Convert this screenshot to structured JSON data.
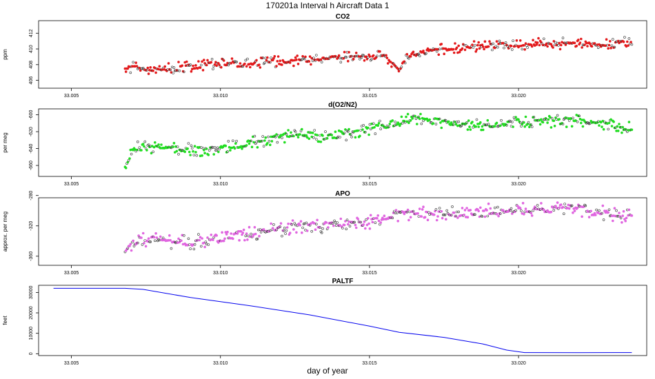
{
  "figure": {
    "title": "170201a   Interval h Aircraft Data 1",
    "xlabel": "day of year",
    "x_ticks": [
      "33.005",
      "33.010",
      "33.015",
      "33.020"
    ]
  },
  "chart_data": [
    {
      "type": "scatter",
      "title": "CO2",
      "xlabel": "day of year",
      "ylabel": "ppm",
      "xlim": [
        33.0039,
        33.0243
      ],
      "ylim": [
        405.0,
        413.6
      ],
      "x_ticks": [
        33.005,
        33.01,
        33.015,
        33.02
      ],
      "y_ticks": [
        406,
        408,
        410,
        412
      ],
      "color": "#e31a1c",
      "anchors": [
        [
          33.0068,
          407.7
        ],
        [
          33.008,
          407.4
        ],
        [
          33.0095,
          408.0
        ],
        [
          33.011,
          408.2
        ],
        [
          33.0125,
          408.5
        ],
        [
          33.014,
          408.9
        ],
        [
          33.0155,
          409.1
        ],
        [
          33.016,
          407.6
        ],
        [
          33.0165,
          409.6
        ],
        [
          33.018,
          410.2
        ],
        [
          33.02,
          410.6
        ],
        [
          33.022,
          410.7
        ],
        [
          33.0238,
          410.8
        ]
      ],
      "x_range": [
        33.0068,
        33.0238
      ],
      "n_points": 560,
      "noise": 0.45,
      "seed": 11
    },
    {
      "type": "scatter",
      "title": "d(O2/N2)",
      "xlabel": "day of year",
      "ylabel": "per meg",
      "xlim": [
        33.0039,
        33.0243
      ],
      "ylim": [
        -673,
        -593
      ],
      "x_ticks": [
        33.005,
        33.01,
        33.015,
        33.02
      ],
      "y_ticks": [
        -660,
        -640,
        -620,
        -600
      ],
      "color": "#22dd22",
      "anchors": [
        [
          33.0068,
          -662
        ],
        [
          33.0071,
          -638
        ],
        [
          33.0085,
          -640
        ],
        [
          33.0095,
          -642
        ],
        [
          33.011,
          -633
        ],
        [
          33.0125,
          -624
        ],
        [
          33.0135,
          -625
        ],
        [
          33.0145,
          -622
        ],
        [
          33.0155,
          -613
        ],
        [
          33.0165,
          -604
        ],
        [
          33.018,
          -612
        ],
        [
          33.02,
          -609
        ],
        [
          33.022,
          -607
        ],
        [
          33.0238,
          -616
        ]
      ],
      "x_range": [
        33.0068,
        33.0238
      ],
      "n_points": 560,
      "noise": 4.5,
      "seed": 23
    },
    {
      "type": "scatter",
      "title": "APO",
      "xlabel": "day of year",
      "ylabel": "approx. per meg",
      "xlim": [
        33.0039,
        33.0243
      ],
      "ylim": [
        -372,
        -283
      ],
      "x_ticks": [
        33.005,
        33.01,
        33.015,
        33.02
      ],
      "y_ticks": [
        -360,
        -320,
        -280
      ],
      "color": "#e066e0",
      "anchors": [
        [
          33.0068,
          -355
        ],
        [
          33.0072,
          -338
        ],
        [
          33.009,
          -342
        ],
        [
          33.011,
          -330
        ],
        [
          33.0125,
          -322
        ],
        [
          33.014,
          -318
        ],
        [
          33.015,
          -316
        ],
        [
          33.016,
          -305
        ],
        [
          33.018,
          -302
        ],
        [
          33.02,
          -298
        ],
        [
          33.022,
          -298
        ],
        [
          33.0238,
          -308
        ]
      ],
      "x_range": [
        33.0068,
        33.0238
      ],
      "n_points": 560,
      "noise": 6,
      "seed": 37
    },
    {
      "type": "line",
      "title": "PALTF",
      "xlabel": "day of year",
      "ylabel": "feet",
      "xlim": [
        33.0039,
        33.0243
      ],
      "ylim": [
        -900,
        33500
      ],
      "x_ticks": [
        33.005,
        33.01,
        33.015,
        33.02
      ],
      "y_ticks": [
        0,
        10000,
        20000,
        30000
      ],
      "color": "#0000ee",
      "x": [
        33.0044,
        33.006,
        33.0068,
        33.0074,
        33.009,
        33.011,
        33.013,
        33.015,
        33.016,
        33.0175,
        33.0188,
        33.0196,
        33.0202,
        33.022,
        33.0238
      ],
      "y": [
        32000,
        32000,
        32000,
        31500,
        27500,
        23500,
        19000,
        13500,
        10500,
        8000,
        4800,
        1800,
        600,
        500,
        600
      ]
    }
  ]
}
